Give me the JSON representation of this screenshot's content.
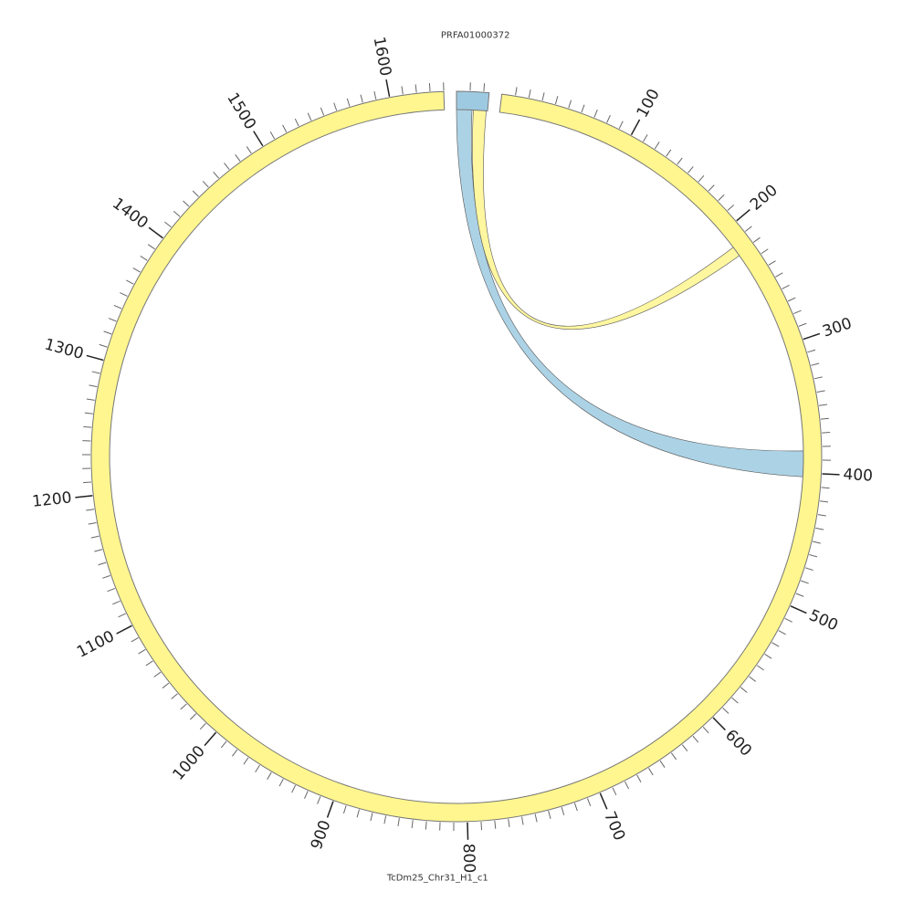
{
  "chart_data": {
    "type": "chord",
    "segments": [
      {
        "name": "PRFA01000372",
        "length": 24,
        "color": "#9ecae1"
      },
      {
        "name": "TcDm25_Chr31_H1_c1",
        "length": 1640,
        "color": "#fff68f"
      }
    ],
    "major_ticks": [
      100,
      200,
      300,
      400,
      500,
      600,
      700,
      800,
      900,
      1000,
      1100,
      1200,
      1300,
      1400,
      1500,
      1600
    ],
    "minor_tick_interval": 10,
    "links": [
      {
        "source": 0,
        "source_range": [
          0,
          12
        ],
        "target": 1,
        "target_range": [
          383,
          403
        ],
        "color": "#9ecae1"
      },
      {
        "source": 0,
        "source_range": [
          13,
          23
        ],
        "target": 1,
        "target_range": [
          214,
          222
        ],
        "color": "#fff68f"
      }
    ]
  }
}
